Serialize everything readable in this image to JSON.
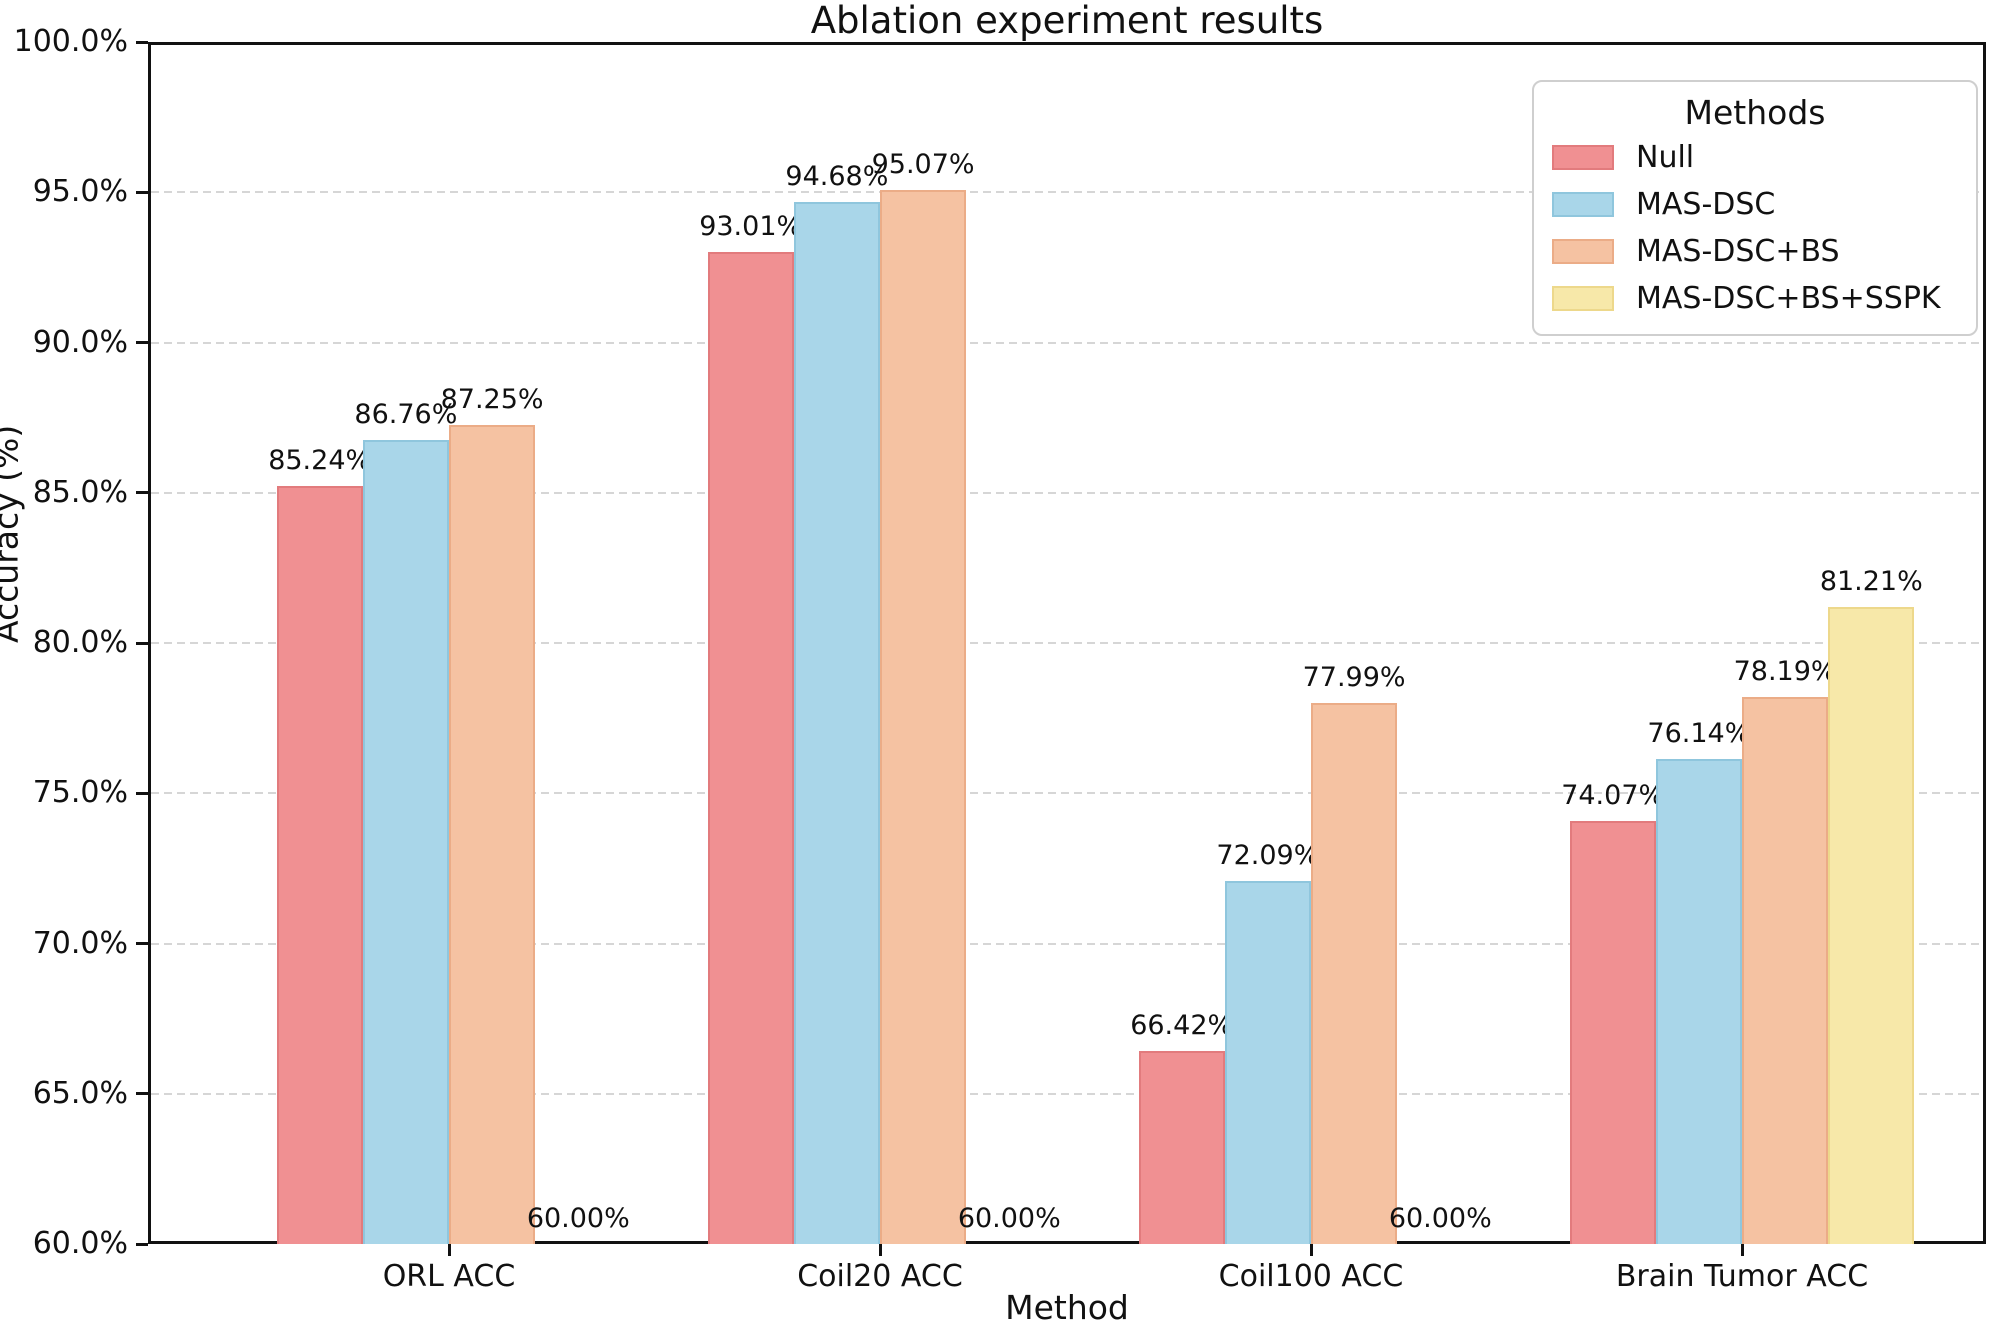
{
  "chart_data": {
    "type": "bar",
    "title": "Ablation experiment results",
    "xlabel": "Method",
    "ylabel": "Accuracy (%)",
    "ylim": [
      60,
      100
    ],
    "grid": "horizontal-dashed",
    "grid_color": "#d6d6d6",
    "y_ticks": [
      {
        "value": 60,
        "label": "60.0%"
      },
      {
        "value": 65,
        "label": "65.0%"
      },
      {
        "value": 70,
        "label": "70.0%"
      },
      {
        "value": 75,
        "label": "75.0%"
      },
      {
        "value": 80,
        "label": "80.0%"
      },
      {
        "value": 85,
        "label": "85.0%"
      },
      {
        "value": 90,
        "label": "90.0%"
      },
      {
        "value": 95,
        "label": "95.0%"
      },
      {
        "value": 100,
        "label": "100.0%"
      }
    ],
    "categories": [
      "ORL ACC",
      "Coil20 ACC",
      "Coil100 ACC",
      "Brain Tumor ACC"
    ],
    "series": [
      {
        "name": "Null",
        "color": "#F09092",
        "edge_color": "#E27B7D",
        "values": [
          85.24,
          93.01,
          66.42,
          74.07
        ],
        "labels": [
          "85.24%",
          "93.01%",
          "66.42%",
          "74.07%"
        ]
      },
      {
        "name": "MAS-DSC",
        "color": "#A9D6E9",
        "edge_color": "#8FC6DD",
        "values": [
          86.76,
          94.68,
          72.09,
          76.14
        ],
        "labels": [
          "86.76%",
          "94.68%",
          "72.09%",
          "76.14%"
        ]
      },
      {
        "name": "MAS-DSC+BS",
        "color": "#F5C2A2",
        "edge_color": "#EBAC87",
        "values": [
          87.25,
          95.07,
          77.99,
          78.19
        ],
        "labels": [
          "87.25%",
          "95.07%",
          "77.99%",
          "78.19%"
        ]
      },
      {
        "name": "MAS-DSC+BS+SSPK",
        "color": "#F7E8A9",
        "edge_color": "#EDD88B",
        "values": [
          60.0,
          60.0,
          60.0,
          81.21
        ],
        "labels": [
          "60.00%",
          "60.00%",
          "60.00%",
          "81.21%"
        ]
      }
    ],
    "legend": {
      "title": "Methods",
      "position": "upper right",
      "entries": [
        "Null",
        "MAS-DSC",
        "MAS-DSC+BS",
        "MAS-DSC+BS+SSPK"
      ]
    }
  }
}
